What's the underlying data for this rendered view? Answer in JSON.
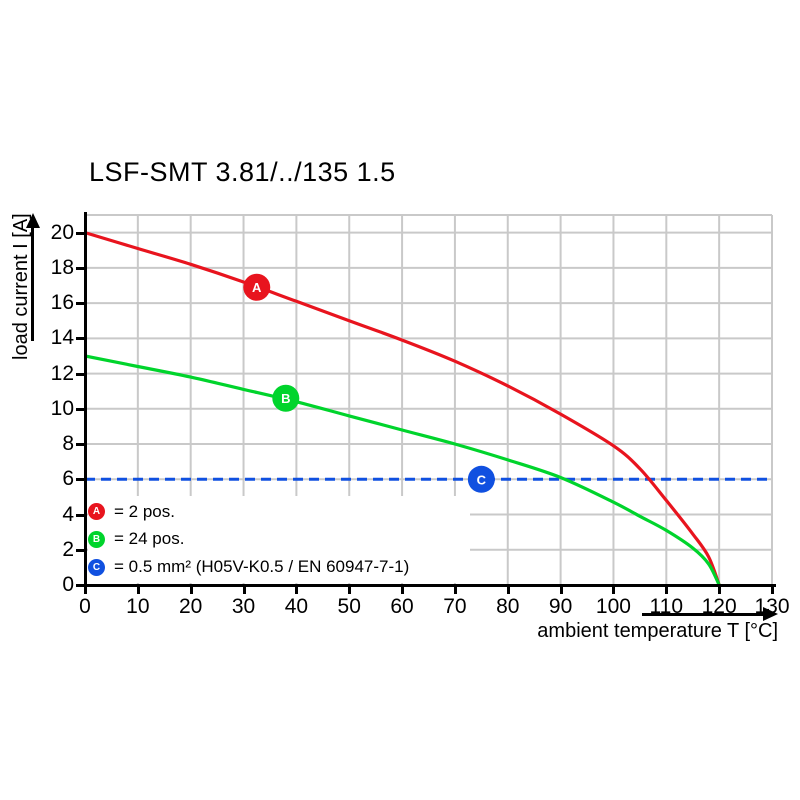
{
  "title": "LSF-SMT 3.81/../135 1.5",
  "colors": {
    "series_a_red": "#e8141e",
    "series_b_green": "#00d42c",
    "series_c_blue": "#1050e0",
    "grid": "#c9c9c9",
    "axis": "#000000",
    "background": "#ffffff"
  },
  "legend": {
    "items": [
      {
        "letter": "A",
        "color": "#e8141e",
        "label": "= 2 pos."
      },
      {
        "letter": "B",
        "color": "#00d42c",
        "label": "= 24 pos."
      },
      {
        "letter": "C",
        "color": "#1050e0",
        "label": "= 0.5 mm² (H05V-K0.5 / EN 60947-7-1)"
      }
    ]
  },
  "chart_data": {
    "type": "line",
    "title": "LSF-SMT 3.81/../135 1.5",
    "xlabel": "ambient temperature T [°C]",
    "ylabel": "load current I [A]",
    "xlim": [
      0,
      130
    ],
    "ylim": [
      0,
      21
    ],
    "grid": true,
    "x_ticks": [
      0,
      10,
      20,
      30,
      40,
      50,
      60,
      70,
      80,
      90,
      100,
      110,
      120,
      130
    ],
    "y_ticks": [
      0,
      2,
      4,
      6,
      8,
      10,
      12,
      14,
      16,
      18,
      20
    ],
    "grid_x": [
      10,
      20,
      30,
      40,
      50,
      60,
      70,
      80,
      90,
      100,
      110,
      120,
      130
    ],
    "grid_y": [
      2,
      4,
      6,
      8,
      10,
      12,
      14,
      16,
      18,
      20,
      21
    ],
    "series": [
      {
        "name": "A = 2 pos.",
        "color": "#e8141e",
        "marker": {
          "letter": "A",
          "x": 32.5,
          "y": 16.9
        },
        "points": [
          [
            0,
            20
          ],
          [
            10,
            19.1
          ],
          [
            20,
            18.2
          ],
          [
            30,
            17.2
          ],
          [
            40,
            16.1
          ],
          [
            50,
            15.0
          ],
          [
            60,
            13.9
          ],
          [
            70,
            12.7
          ],
          [
            80,
            11.3
          ],
          [
            90,
            9.7
          ],
          [
            100,
            7.9
          ],
          [
            105,
            6.6
          ],
          [
            110,
            4.8
          ],
          [
            115,
            2.9
          ],
          [
            118,
            1.6
          ],
          [
            120,
            0
          ]
        ]
      },
      {
        "name": "B = 24 pos.",
        "color": "#00d42c",
        "marker": {
          "letter": "B",
          "x": 38,
          "y": 10.6
        },
        "points": [
          [
            0,
            13
          ],
          [
            10,
            12.4
          ],
          [
            20,
            11.8
          ],
          [
            30,
            11.1
          ],
          [
            40,
            10.4
          ],
          [
            50,
            9.6
          ],
          [
            60,
            8.8
          ],
          [
            70,
            8.0
          ],
          [
            80,
            7.1
          ],
          [
            90,
            6.1
          ],
          [
            100,
            4.7
          ],
          [
            105,
            3.9
          ],
          [
            110,
            3.1
          ],
          [
            115,
            2.1
          ],
          [
            118,
            1.2
          ],
          [
            120,
            0
          ]
        ]
      }
    ],
    "reference_line": {
      "name": "C = 0.5 mm² (H05V-K0.5 / EN 60947-7-1)",
      "color": "#1050e0",
      "style": "dashed",
      "y": 6,
      "x_range": [
        0,
        130
      ],
      "marker": {
        "letter": "C",
        "x": 75,
        "y": 6
      }
    }
  }
}
